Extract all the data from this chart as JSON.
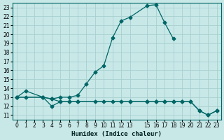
{
  "xlabel": "Humidex (Indice chaleur)",
  "background_color": "#c8e8e8",
  "grid_color": "#a8d0d0",
  "line_color": "#006666",
  "xlim": [
    -0.5,
    23.5
  ],
  "ylim": [
    10.5,
    23.5
  ],
  "xticks": [
    0,
    1,
    2,
    3,
    4,
    5,
    6,
    7,
    8,
    9,
    10,
    11,
    12,
    13,
    15,
    16,
    17,
    18,
    19,
    20,
    21,
    22,
    23
  ],
  "yticks": [
    11,
    12,
    13,
    14,
    15,
    16,
    17,
    18,
    19,
    20,
    21,
    22,
    23
  ],
  "line1_x": [
    0,
    1,
    3,
    4,
    5,
    6,
    7,
    8,
    9,
    10,
    11,
    12,
    13,
    15,
    16,
    17,
    18
  ],
  "line1_y": [
    13.0,
    13.7,
    13.0,
    12.8,
    13.0,
    13.0,
    13.2,
    14.5,
    15.8,
    16.5,
    19.6,
    21.5,
    21.9,
    23.2,
    23.3,
    21.3,
    19.5
  ],
  "line2_x": [
    0,
    3,
    4,
    5,
    6,
    7,
    13,
    15,
    16,
    17,
    18,
    19,
    20,
    21,
    22,
    23
  ],
  "line2_y": [
    13.0,
    13.0,
    12.0,
    12.5,
    12.5,
    12.5,
    12.5,
    12.5,
    12.5,
    12.5,
    12.5,
    12.5,
    12.5,
    11.5,
    11.0,
    11.5
  ],
  "line3_x": [
    0,
    1,
    3,
    4,
    5,
    6,
    7,
    9,
    10,
    11,
    12,
    13,
    15,
    16,
    17,
    18,
    19,
    20,
    21,
    22,
    23
  ],
  "line3_y": [
    13.0,
    13.0,
    13.0,
    12.8,
    12.5,
    12.5,
    12.5,
    12.5,
    12.5,
    12.5,
    12.5,
    12.5,
    12.5,
    12.5,
    12.5,
    12.5,
    12.5,
    12.5,
    11.5,
    11.0,
    11.5
  ],
  "marker_size": 2.5,
  "linewidth": 0.9,
  "tick_fontsize": 5.5,
  "xlabel_fontsize": 6.5
}
